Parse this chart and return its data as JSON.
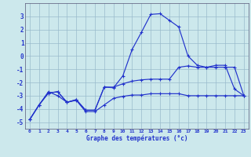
{
  "xlabel": "Graphe des températures (°c)",
  "background_color": "#cce8ec",
  "line_color": "#2233cc",
  "grid_color": "#99bbcc",
  "x_values": [
    0,
    1,
    2,
    3,
    4,
    5,
    6,
    7,
    8,
    9,
    10,
    11,
    12,
    13,
    14,
    15,
    16,
    17,
    18,
    19,
    20,
    21,
    22,
    23
  ],
  "series_main": [
    -4.8,
    -3.7,
    -2.8,
    -2.7,
    -3.5,
    -3.3,
    -4.1,
    -4.1,
    -2.35,
    -2.4,
    -1.5,
    0.5,
    1.8,
    3.15,
    3.2,
    2.7,
    2.2,
    0.0,
    -0.7,
    -0.85,
    -0.7,
    -0.7,
    -2.5,
    -3.0
  ],
  "series_upper": [
    -4.8,
    -3.7,
    -2.8,
    -2.7,
    -3.5,
    -3.3,
    -4.1,
    -4.1,
    -2.35,
    -2.35,
    -2.1,
    -1.9,
    -1.8,
    -1.75,
    -1.75,
    -1.75,
    -0.85,
    -0.75,
    -0.85,
    -0.85,
    -0.85,
    -0.85,
    -0.85,
    -3.0
  ],
  "series_lower": [
    -4.8,
    -3.7,
    -2.7,
    -3.0,
    -3.5,
    -3.35,
    -4.2,
    -4.2,
    -3.7,
    -3.2,
    -3.05,
    -2.95,
    -2.95,
    -2.85,
    -2.85,
    -2.85,
    -2.85,
    -3.0,
    -3.0,
    -3.0,
    -3.0,
    -3.0,
    -3.0,
    -3.0
  ],
  "ylim": [
    -5.5,
    4.0
  ],
  "xlim": [
    -0.5,
    23.5
  ],
  "yticks": [
    -5,
    -4,
    -3,
    -2,
    -1,
    0,
    1,
    2,
    3
  ],
  "xticks": [
    0,
    1,
    2,
    3,
    4,
    5,
    6,
    7,
    8,
    9,
    10,
    11,
    12,
    13,
    14,
    15,
    16,
    17,
    18,
    19,
    20,
    21,
    22,
    23
  ]
}
